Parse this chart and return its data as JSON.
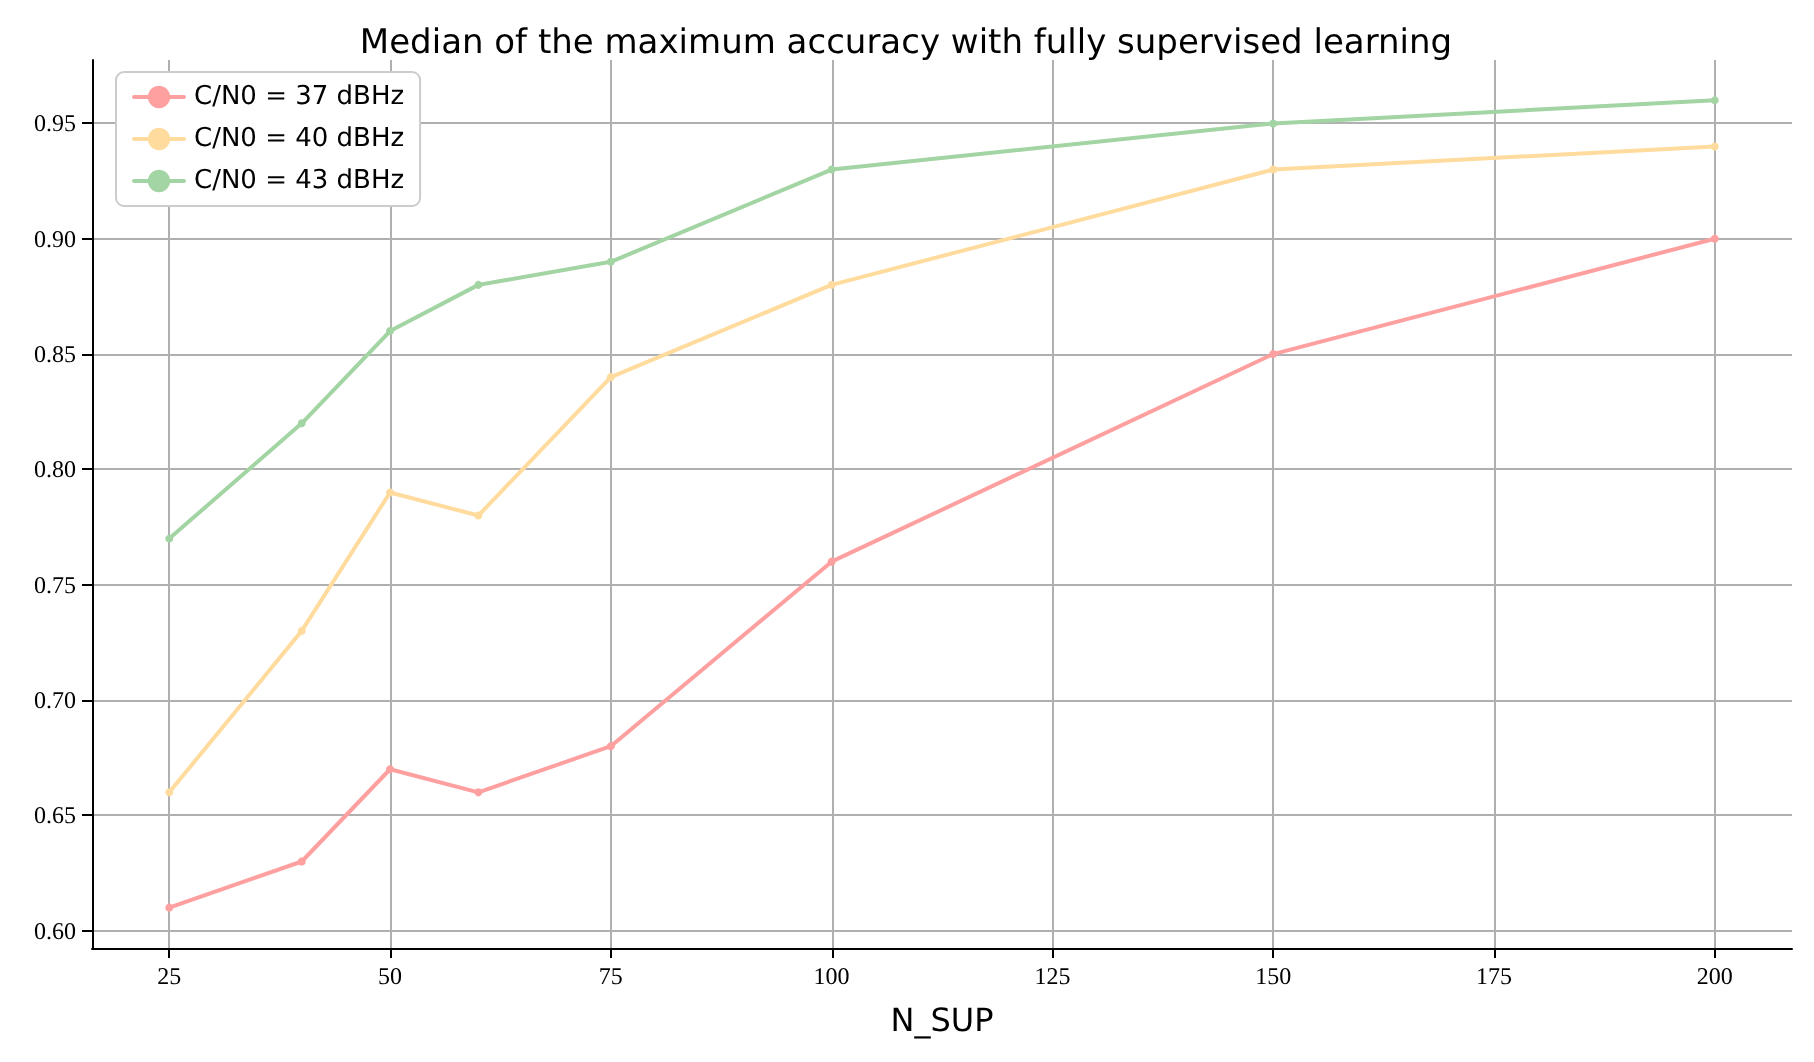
{
  "chart_data": {
    "type": "line",
    "title": "Median of the maximum accuracy with fully supervised learning",
    "xlabel": "N_SUP",
    "x": [
      25,
      40,
      50,
      60,
      75,
      100,
      150,
      200
    ],
    "series": [
      {
        "name": "C/N0 = 37 dBHz",
        "color": "#ffa0a0",
        "values": [
          0.61,
          0.63,
          0.67,
          0.66,
          0.68,
          0.76,
          0.85,
          0.9
        ]
      },
      {
        "name": "C/N0 = 40 dBHz",
        "color": "#ffdb9e",
        "values": [
          0.66,
          0.73,
          0.79,
          0.78,
          0.84,
          0.88,
          0.93,
          0.94
        ]
      },
      {
        "name": "C/N0 = 43 dBHz",
        "color": "#a3d4a3",
        "values": [
          0.77,
          0.82,
          0.86,
          0.88,
          0.89,
          0.93,
          0.95,
          0.96
        ]
      }
    ],
    "xlim": [
      16.25,
      208.75
    ],
    "xticks": [
      25,
      50,
      75,
      100,
      125,
      150,
      175,
      200
    ],
    "ylim": [
      0.5925,
      0.9775
    ],
    "yticks": [
      {
        "value": 0.6,
        "label": "0.60"
      },
      {
        "value": 0.65,
        "label": "0.65"
      },
      {
        "value": 0.7,
        "label": "0.70"
      },
      {
        "value": 0.75,
        "label": "0.75"
      },
      {
        "value": 0.8,
        "label": "0.80"
      },
      {
        "value": 0.85,
        "label": "0.85"
      },
      {
        "value": 0.9,
        "label": "0.90"
      },
      {
        "value": 0.95,
        "label": "0.95"
      }
    ],
    "grid": true,
    "legend": "top left",
    "marker": "circle",
    "line_style": "solid"
  }
}
